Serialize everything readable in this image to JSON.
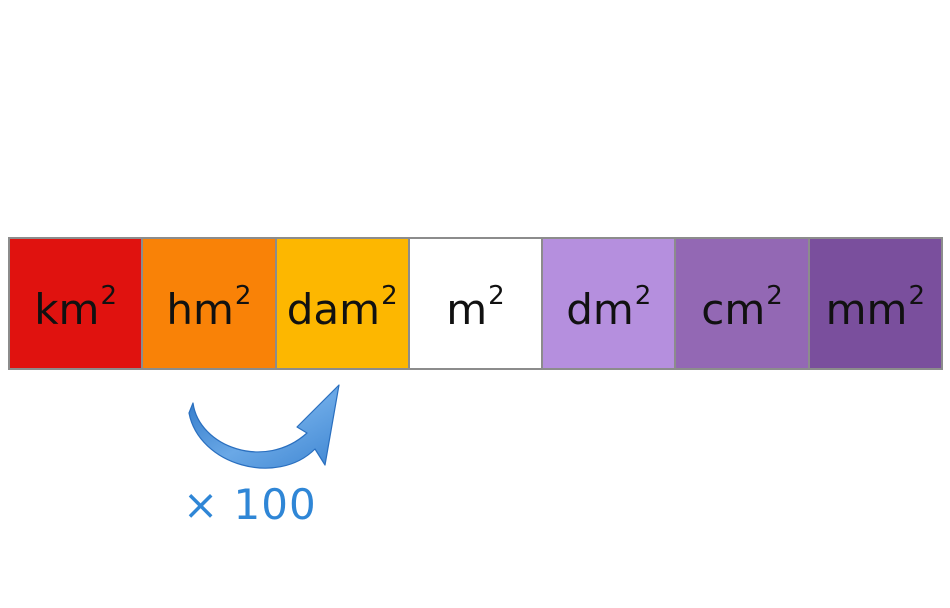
{
  "units": [
    {
      "label": "km",
      "exponent": "2",
      "color": "#e0120f"
    },
    {
      "label": "hm",
      "exponent": "2",
      "color": "#f98207"
    },
    {
      "label": "dam",
      "exponent": "2",
      "color": "#fdb700"
    },
    {
      "label": "m",
      "exponent": "2",
      "color": "#ffffff"
    },
    {
      "label": "dm",
      "exponent": "2",
      "color": "#b58fde"
    },
    {
      "label": "cm",
      "exponent": "2",
      "color": "#9368b4"
    },
    {
      "label": "mm",
      "exponent": "2",
      "color": "#7a4f9d"
    }
  ],
  "conversion": {
    "factor_label": "× 100",
    "arrow_color": "#3a8ad8",
    "from_unit": "hm",
    "to_unit": "dam"
  }
}
